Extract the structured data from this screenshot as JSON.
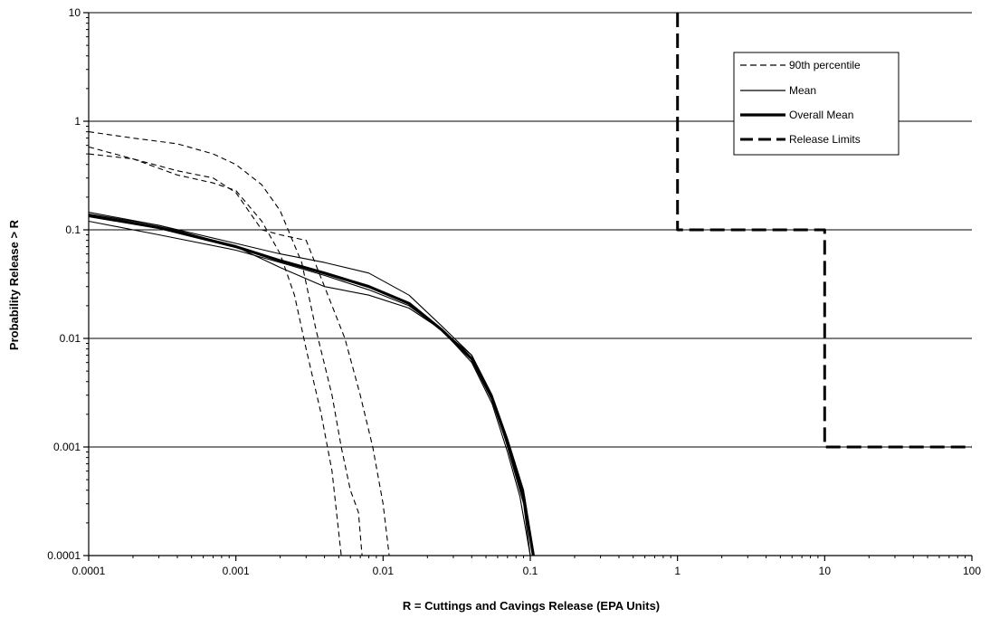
{
  "chart_data": {
    "type": "line",
    "title": "",
    "xlabel": "R = Cuttings and Cavings Release (EPA Units)",
    "ylabel": "Probability Release > R",
    "x_scale": "log",
    "y_scale": "log",
    "xlim": [
      0.0001,
      100
    ],
    "ylim": [
      0.0001,
      10
    ],
    "x_ticks": [
      "0.0001",
      "0.001",
      "0.01",
      "0.1",
      "1",
      "10",
      "100"
    ],
    "y_ticks": [
      "0.0001",
      "0.001",
      "0.01",
      "0.1",
      "1",
      "10"
    ],
    "grid": "horizontal",
    "legend_position": "top-right",
    "legend": [
      {
        "label": "90th percentile",
        "style": "dashed"
      },
      {
        "label": "Mean",
        "style": "solid"
      },
      {
        "label": "Overall Mean",
        "style": "thick"
      },
      {
        "label": "Release Limits",
        "style": "long-dash"
      }
    ],
    "series": [
      {
        "group": "90th percentile",
        "style": "dashed",
        "x": [
          0.0001,
          0.0002,
          0.0004,
          0.0007,
          0.001,
          0.0015,
          0.002,
          0.0028,
          0.0035,
          0.0045,
          0.0052,
          0.006,
          0.0068,
          0.0072
        ],
        "y": [
          0.8,
          0.7,
          0.62,
          0.5,
          0.4,
          0.26,
          0.15,
          0.05,
          0.012,
          0.003,
          0.001,
          0.0004,
          0.00025,
          0.0001
        ]
      },
      {
        "group": "90th percentile",
        "style": "dashed",
        "x": [
          0.0001,
          0.0002,
          0.0004,
          0.0007,
          0.001,
          0.0015,
          0.002,
          0.0025,
          0.003,
          0.0038,
          0.0045,
          0.0052
        ],
        "y": [
          0.58,
          0.45,
          0.32,
          0.27,
          0.23,
          0.12,
          0.06,
          0.025,
          0.008,
          0.002,
          0.0006,
          0.0001
        ]
      },
      {
        "group": "90th percentile",
        "style": "dashed",
        "x": [
          0.0001,
          0.0002,
          0.0004,
          0.0007,
          0.001,
          0.0015,
          0.002,
          0.003,
          0.004,
          0.0055,
          0.007,
          0.0085,
          0.01,
          0.011
        ],
        "y": [
          0.5,
          0.45,
          0.35,
          0.3,
          0.22,
          0.1,
          0.09,
          0.08,
          0.03,
          0.01,
          0.003,
          0.001,
          0.0003,
          0.0001
        ]
      },
      {
        "group": "Mean",
        "style": "solid",
        "x": [
          0.0001,
          0.0003,
          0.001,
          0.002,
          0.004,
          0.008,
          0.015,
          0.025,
          0.04,
          0.055,
          0.07,
          0.085,
          0.1
        ],
        "y": [
          0.12,
          0.09,
          0.065,
          0.05,
          0.038,
          0.028,
          0.02,
          0.012,
          0.006,
          0.0025,
          0.0009,
          0.00035,
          0.0001
        ]
      },
      {
        "group": "Mean",
        "style": "solid",
        "x": [
          0.0001,
          0.0003,
          0.001,
          0.002,
          0.004,
          0.008,
          0.015,
          0.025,
          0.04,
          0.055,
          0.07,
          0.09,
          0.105
        ],
        "y": [
          0.14,
          0.11,
          0.075,
          0.06,
          0.05,
          0.04,
          0.025,
          0.013,
          0.007,
          0.003,
          0.0012,
          0.0004,
          0.0001
        ]
      },
      {
        "group": "Mean",
        "style": "solid",
        "x": [
          0.0001,
          0.0003,
          0.001,
          0.002,
          0.004,
          0.008,
          0.015,
          0.025,
          0.04,
          0.055,
          0.07,
          0.09,
          0.1
        ],
        "y": [
          0.145,
          0.11,
          0.07,
          0.045,
          0.03,
          0.025,
          0.019,
          0.012,
          0.007,
          0.003,
          0.001,
          0.0003,
          0.0001
        ]
      },
      {
        "group": "Overall Mean",
        "style": "thick",
        "x": [
          0.0001,
          0.0003,
          0.001,
          0.002,
          0.004,
          0.008,
          0.015,
          0.025,
          0.04,
          0.055,
          0.07,
          0.09,
          0.105
        ],
        "y": [
          0.135,
          0.105,
          0.07,
          0.052,
          0.04,
          0.03,
          0.021,
          0.012,
          0.0065,
          0.0028,
          0.0011,
          0.00035,
          0.0001
        ]
      },
      {
        "group": "Release Limits",
        "style": "long-dash",
        "x": [
          1,
          1,
          10,
          10,
          100
        ],
        "y": [
          10,
          0.1,
          0.1,
          0.001,
          0.001
        ]
      }
    ]
  }
}
